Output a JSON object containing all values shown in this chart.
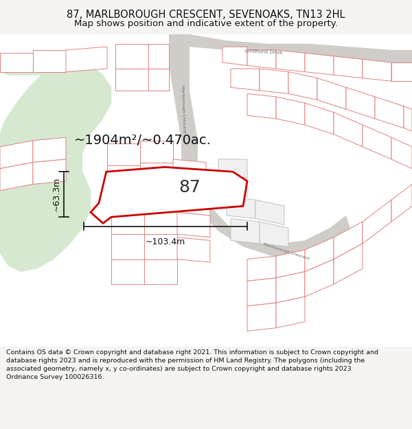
{
  "title_line1": "87, MARLBOROUGH CRESCENT, SEVENOAKS, TN13 2HL",
  "title_line2": "Map shows position and indicative extent of the property.",
  "footer_text": "Contains OS data © Crown copyright and database right 2021. This information is subject to Crown copyright and database rights 2023 and is reproduced with the permission of HM Land Registry. The polygons (including the associated geometry, namely x, y co-ordinates) are subject to Crown copyright and database rights 2023 Ordnance Survey 100026316.",
  "area_label": "~1904m²/~0.470ac.",
  "number_label": "87",
  "dim_horizontal": "~103.4m",
  "dim_vertical": "~63.3m",
  "bg_color": "#f5f4f2",
  "map_bg": "#ffffff",
  "green_color": "#d6e8d0",
  "parcel_stroke": "#e08080",
  "parcel_gray_stroke": "#b8b8b8",
  "road_color": "#d8d5d0",
  "highlight_stroke": "#cc0000",
  "dim_color": "#111111",
  "text_color": "#111111",
  "title_fontsize": 10.5,
  "subtitle_fontsize": 9.5,
  "footer_fontsize": 6.8,
  "area_fontsize": 14,
  "number_fontsize": 18,
  "dim_fontsize": 9
}
